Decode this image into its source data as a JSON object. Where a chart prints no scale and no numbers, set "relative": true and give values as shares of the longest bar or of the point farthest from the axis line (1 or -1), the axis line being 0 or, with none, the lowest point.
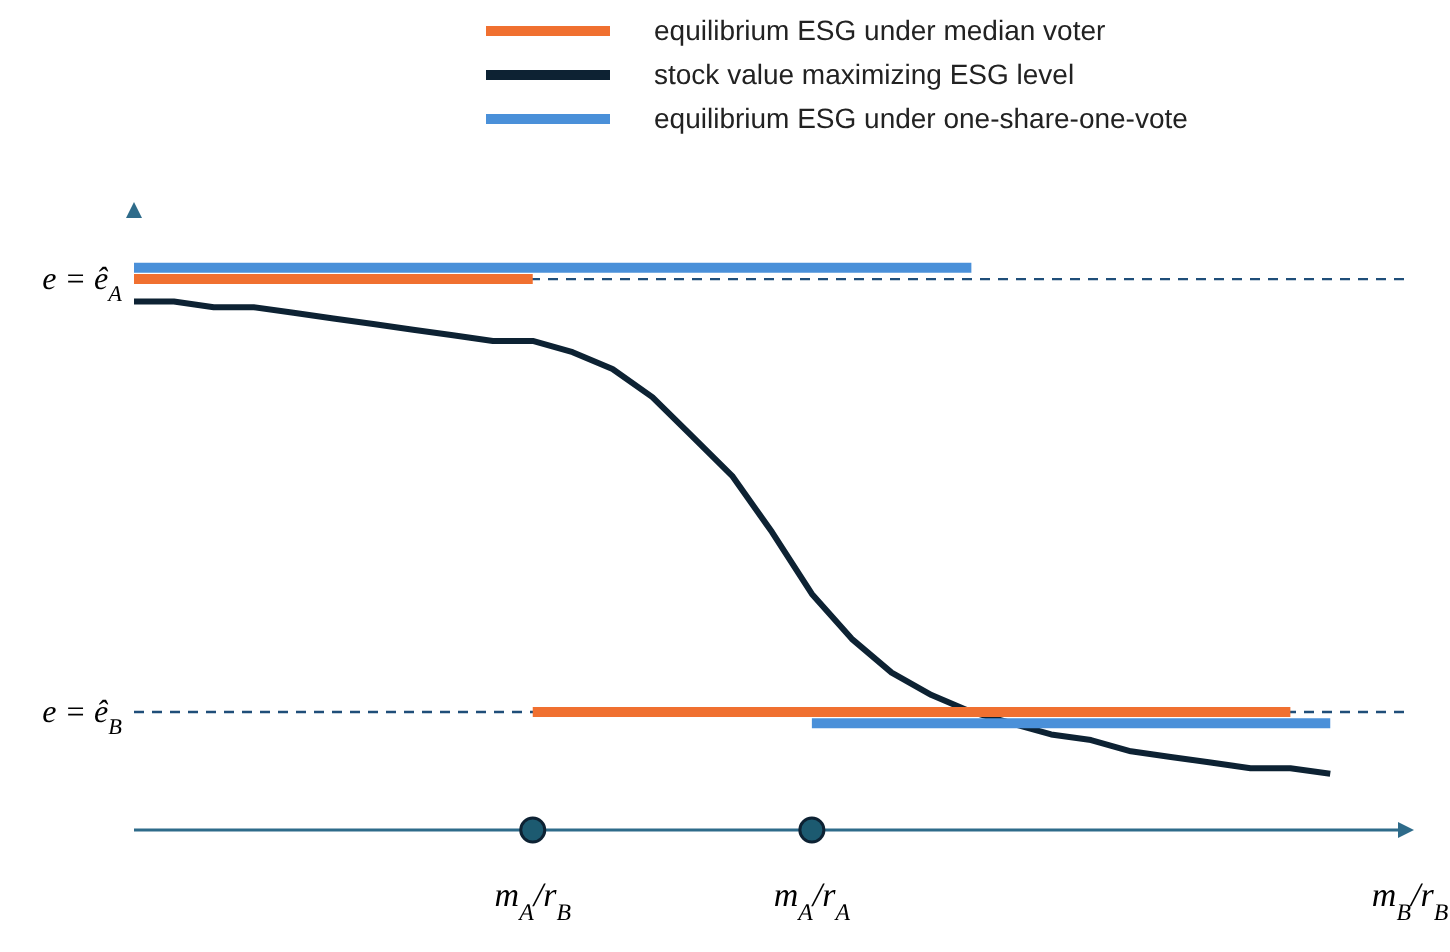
{
  "chart_data": {
    "type": "line",
    "relative": true,
    "legend": "top",
    "categories": [
      null,
      null,
      null,
      null,
      null,
      null,
      null,
      null,
      null,
      null,
      "m$_{A}$/r$_{B}$",
      null,
      null,
      null,
      null,
      null,
      null,
      "m$_{A}$/r$_{A}$",
      null,
      null,
      null,
      null,
      null,
      null,
      null,
      null,
      null,
      null,
      null,
      null,
      null,
      null,
      "m$_{B}$/r$_{B}$"
    ],
    "series": [
      {
        "name": "equilibrium ESG under one-share-one-vote",
        "color": "#4a90d9",
        "values": [
          1,
          1,
          1,
          1,
          1,
          1,
          1,
          1,
          1,
          1,
          1,
          1,
          1,
          1,
          1,
          1,
          1,
          1,
          1,
          1,
          1,
          1,
          null,
          null,
          null,
          null,
          null,
          null,
          null,
          null,
          null,
          null,
          null
        ]
      },
      {
        "name": "equilibrium ESG under median voter",
        "color": "#f07030",
        "values": [
          0.98,
          0.98,
          0.98,
          0.98,
          0.98,
          0.98,
          0.98,
          0.98,
          0.98,
          0.98,
          0.98,
          null,
          null,
          null,
          null,
          null,
          null,
          null,
          null,
          null,
          null,
          null,
          null,
          null,
          null,
          null,
          null,
          null,
          null,
          null,
          null,
          null,
          null
        ]
      },
      {
        "name": "stock value maximizing ESG level",
        "color": "#0d2233",
        "values": [
          0.94,
          0.94,
          0.93,
          0.93,
          0.92,
          0.91,
          0.9,
          0.89,
          0.88,
          0.87,
          0.87,
          0.85,
          0.82,
          0.77,
          0.7,
          0.63,
          0.53,
          0.42,
          0.34,
          0.28,
          0.24,
          0.21,
          0.19,
          0.17,
          0.16,
          0.14,
          0.13,
          0.12,
          0.11,
          0.11,
          0.1,
          null,
          null
        ]
      },
      {
        "color": "#f07030",
        "values": [
          null,
          null,
          null,
          null,
          null,
          null,
          null,
          null,
          null,
          null,
          0.21,
          0.21,
          0.21,
          0.21,
          0.21,
          0.21,
          0.21,
          0.21,
          0.21,
          0.21,
          0.21,
          0.21,
          0.21,
          0.21,
          0.21,
          0.21,
          0.21,
          0.21,
          0.21,
          0.21,
          null,
          null,
          null
        ]
      },
      {
        "color": "#4a90d9",
        "values": [
          null,
          null,
          null,
          null,
          null,
          null,
          null,
          null,
          null,
          null,
          null,
          null,
          null,
          null,
          null,
          null,
          null,
          0.19,
          0.19,
          0.19,
          0.19,
          0.19,
          0.19,
          0.19,
          0.19,
          0.19,
          0.19,
          0.19,
          0.19,
          0.19,
          0.19,
          null,
          null
        ]
      }
    ],
    "ref_lines": [
      {
        "axis": "y",
        "value": 0.98,
        "label": "e = ê$_{A}$",
        "color": "#1f4e79",
        "line_style": "dashed"
      },
      {
        "axis": "y",
        "value": 0.21,
        "label": "e = ê$_{B}$",
        "color": "#1f4e79",
        "line_style": "dashed"
      }
    ]
  }
}
